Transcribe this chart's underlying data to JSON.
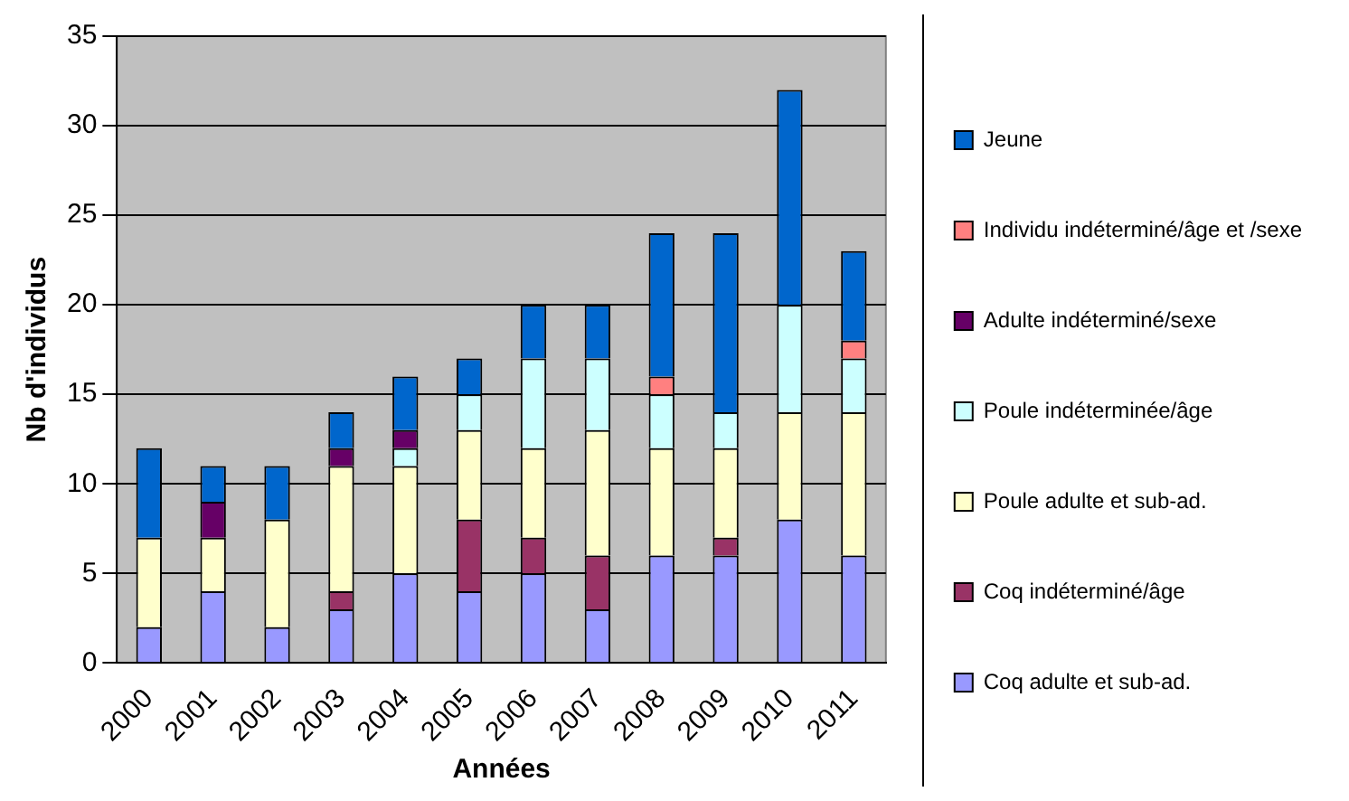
{
  "chart_data": {
    "type": "bar",
    "stacked": true,
    "xlabel": "Années",
    "ylabel": "Nb d'individus",
    "categories": [
      "2000",
      "2001",
      "2002",
      "2003",
      "2004",
      "2005",
      "2006",
      "2007",
      "2008",
      "2009",
      "2010",
      "2011"
    ],
    "ylim": [
      0,
      35
    ],
    "yticks": [
      0,
      5,
      10,
      15,
      20,
      25,
      30,
      35
    ],
    "grid": "y",
    "legend": "right",
    "series": [
      {
        "name": "Coq adulte et sub-ad.",
        "color": "#9999ff",
        "values": [
          2,
          4,
          2,
          3,
          5,
          4,
          5,
          3,
          6,
          6,
          8,
          6
        ]
      },
      {
        "name": "Coq indéterminé/âge",
        "color": "#993366",
        "values": [
          0,
          0,
          0,
          1,
          0,
          4,
          2,
          3,
          0,
          1,
          0,
          0
        ]
      },
      {
        "name": "Poule adulte et sub-ad.",
        "color": "#ffffcc",
        "values": [
          5,
          3,
          6,
          7,
          6,
          5,
          5,
          7,
          6,
          5,
          6,
          8
        ]
      },
      {
        "name": "Poule indéterminée/âge",
        "color": "#ccffff",
        "values": [
          0,
          0,
          0,
          0,
          1,
          2,
          5,
          4,
          3,
          2,
          6,
          3
        ]
      },
      {
        "name": "Adulte indéterminé/sexe",
        "color": "#660066",
        "values": [
          0,
          2,
          0,
          1,
          1,
          0,
          0,
          0,
          0,
          0,
          0,
          0
        ]
      },
      {
        "name": "Individu indéterminé/âge et /sexe",
        "color": "#ff8080",
        "values": [
          0,
          0,
          0,
          0,
          0,
          0,
          0,
          0,
          1,
          0,
          0,
          1
        ]
      },
      {
        "name": "Jeune",
        "color": "#0066cc",
        "values": [
          5,
          2,
          3,
          2,
          3,
          2,
          3,
          3,
          8,
          10,
          12,
          5
        ]
      }
    ]
  }
}
